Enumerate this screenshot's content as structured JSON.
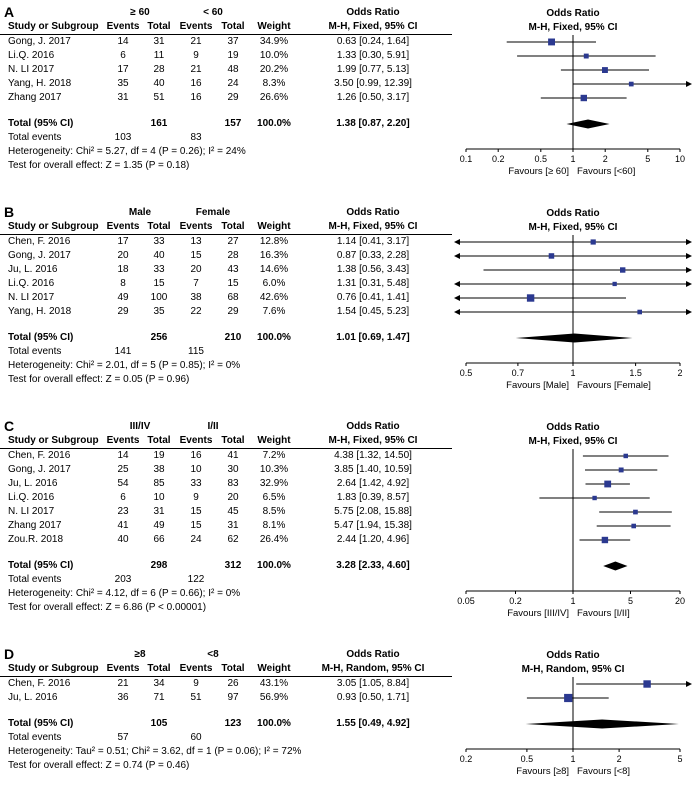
{
  "figure": {
    "columns": {
      "study": "Study or Subgroup",
      "events": "Events",
      "total": "Total",
      "weight": "Weight",
      "or_title": "Odds Ratio"
    },
    "labels": {
      "total_ci": "Total (95% CI)",
      "total_events": "Total events"
    },
    "colors": {
      "marker": "#2b3990",
      "diamond": "#000000",
      "line": "#000000"
    }
  },
  "chart_data": [
    {
      "type": "forest",
      "label": "A",
      "group1": "≥ 60",
      "group2": "< 60",
      "effect_label": "M-H, Fixed, 95% CI",
      "studies": [
        {
          "study": "Gong, J. 2017",
          "events1": "14",
          "total1": "31",
          "events2": "21",
          "total2": "37",
          "weight": "34.9%",
          "or": 0.63,
          "ci_low": 0.24,
          "ci_high": 1.64,
          "ci_text": "0.63 [0.24, 1.64]"
        },
        {
          "study": "Li.Q. 2016",
          "events1": "6",
          "total1": "11",
          "events2": "9",
          "total2": "19",
          "weight": "10.0%",
          "or": 1.33,
          "ci_low": 0.3,
          "ci_high": 5.91,
          "ci_text": "1.33 [0.30, 5.91]"
        },
        {
          "study": "N. LI 2017",
          "events1": "17",
          "total1": "28",
          "events2": "21",
          "total2": "48",
          "weight": "20.2%",
          "or": 1.99,
          "ci_low": 0.77,
          "ci_high": 5.13,
          "ci_text": "1.99 [0.77, 5.13]"
        },
        {
          "study": "Yang, H. 2018",
          "events1": "35",
          "total1": "40",
          "events2": "16",
          "total2": "24",
          "weight": "8.3%",
          "or": 3.5,
          "ci_low": 0.99,
          "ci_high": 12.39,
          "ci_text": "3.50 [0.99, 12.39]"
        },
        {
          "study": "Zhang 2017",
          "events1": "31",
          "total1": "51",
          "events2": "16",
          "total2": "29",
          "weight": "26.6%",
          "or": 1.26,
          "ci_low": 0.5,
          "ci_high": 3.17,
          "ci_text": "1.26 [0.50, 3.17]"
        }
      ],
      "total": {
        "total1": "161",
        "total2": "157",
        "weight": "100.0%",
        "or": 1.38,
        "ci_low": 0.87,
        "ci_high": 2.2,
        "ci_text": "1.38 [0.87, 2.20]"
      },
      "total_events": {
        "events1": "103",
        "events2": "83"
      },
      "heterogeneity": "Heterogeneity: Chi² = 5.27, df = 4 (P = 0.26); I² = 24%",
      "overall_test": "Test for overall effect: Z = 1.35 (P = 0.18)",
      "axis": {
        "min": 0.1,
        "max": 10,
        "ticks": [
          0.1,
          0.2,
          0.5,
          1,
          2,
          5,
          10
        ]
      },
      "favours_left": "Favours [≥ 60]",
      "favours_right": "Favours [<60]"
    },
    {
      "type": "forest",
      "label": "B",
      "group1": "Male",
      "group2": "Female",
      "effect_label": "M-H, Fixed, 95% CI",
      "studies": [
        {
          "study": "Chen, F. 2016",
          "events1": "17",
          "total1": "33",
          "events2": "13",
          "total2": "27",
          "weight": "12.8%",
          "or": 1.14,
          "ci_low": 0.41,
          "ci_high": 3.17,
          "ci_text": "1.14 [0.41, 3.17]"
        },
        {
          "study": "Gong, J. 2017",
          "events1": "20",
          "total1": "40",
          "events2": "15",
          "total2": "28",
          "weight": "16.3%",
          "or": 0.87,
          "ci_low": 0.33,
          "ci_high": 2.28,
          "ci_text": "0.87 [0.33, 2.28]"
        },
        {
          "study": "Ju, L. 2016",
          "events1": "18",
          "total1": "33",
          "events2": "20",
          "total2": "43",
          "weight": "14.6%",
          "or": 1.38,
          "ci_low": 0.56,
          "ci_high": 3.43,
          "ci_text": "1.38 [0.56, 3.43]"
        },
        {
          "study": "Li.Q. 2016",
          "events1": "8",
          "total1": "15",
          "events2": "7",
          "total2": "15",
          "weight": "6.0%",
          "or": 1.31,
          "ci_low": 0.31,
          "ci_high": 5.48,
          "ci_text": "1.31 [0.31, 5.48]"
        },
        {
          "study": "N. LI 2017",
          "events1": "49",
          "total1": "100",
          "events2": "38",
          "total2": "68",
          "weight": "42.6%",
          "or": 0.76,
          "ci_low": 0.41,
          "ci_high": 1.41,
          "ci_text": "0.76 [0.41, 1.41]"
        },
        {
          "study": "Yang, H. 2018",
          "events1": "29",
          "total1": "35",
          "events2": "22",
          "total2": "29",
          "weight": "7.6%",
          "or": 1.54,
          "ci_low": 0.45,
          "ci_high": 5.23,
          "ci_text": "1.54 [0.45, 5.23]"
        }
      ],
      "total": {
        "total1": "256",
        "total2": "210",
        "weight": "100.0%",
        "or": 1.01,
        "ci_low": 0.69,
        "ci_high": 1.47,
        "ci_text": "1.01 [0.69, 1.47]"
      },
      "total_events": {
        "events1": "141",
        "events2": "115"
      },
      "heterogeneity": "Heterogeneity: Chi² = 2.01, df = 5 (P = 0.85); I² = 0%",
      "overall_test": "Test for overall effect: Z = 0.05 (P = 0.96)",
      "axis": {
        "min": 0.5,
        "max": 2,
        "ticks": [
          0.5,
          0.7,
          1,
          1.5,
          2
        ]
      },
      "favours_left": "Favours [Male]",
      "favours_right": "Favours [Female]"
    },
    {
      "type": "forest",
      "label": "C",
      "group1": "III/IV",
      "group2": "I/II",
      "effect_label": "M-H, Fixed, 95% CI",
      "studies": [
        {
          "study": "Chen, F. 2016",
          "events1": "14",
          "total1": "19",
          "events2": "16",
          "total2": "41",
          "weight": "7.2%",
          "or": 4.38,
          "ci_low": 1.32,
          "ci_high": 14.5,
          "ci_text": "4.38 [1.32, 14.50]"
        },
        {
          "study": "Gong, J. 2017",
          "events1": "25",
          "total1": "38",
          "events2": "10",
          "total2": "30",
          "weight": "10.3%",
          "or": 3.85,
          "ci_low": 1.4,
          "ci_high": 10.59,
          "ci_text": "3.85 [1.40, 10.59]"
        },
        {
          "study": "Ju, L. 2016",
          "events1": "54",
          "total1": "85",
          "events2": "33",
          "total2": "83",
          "weight": "32.9%",
          "or": 2.64,
          "ci_low": 1.42,
          "ci_high": 4.92,
          "ci_text": "2.64 [1.42, 4.92]"
        },
        {
          "study": "Li.Q. 2016",
          "events1": "6",
          "total1": "10",
          "events2": "9",
          "total2": "20",
          "weight": "6.5%",
          "or": 1.83,
          "ci_low": 0.39,
          "ci_high": 8.57,
          "ci_text": "1.83 [0.39, 8.57]"
        },
        {
          "study": "N. LI 2017",
          "events1": "23",
          "total1": "31",
          "events2": "15",
          "total2": "45",
          "weight": "8.5%",
          "or": 5.75,
          "ci_low": 2.08,
          "ci_high": 15.88,
          "ci_text": "5.75 [2.08, 15.88]"
        },
        {
          "study": "Zhang 2017",
          "events1": "41",
          "total1": "49",
          "events2": "15",
          "total2": "31",
          "weight": "8.1%",
          "or": 5.47,
          "ci_low": 1.94,
          "ci_high": 15.38,
          "ci_text": "5.47 [1.94, 15.38]"
        },
        {
          "study": "Zou.R. 2018",
          "events1": "40",
          "total1": "66",
          "events2": "24",
          "total2": "62",
          "weight": "26.4%",
          "or": 2.44,
          "ci_low": 1.2,
          "ci_high": 4.96,
          "ci_text": "2.44 [1.20, 4.96]"
        }
      ],
      "total": {
        "total1": "298",
        "total2": "312",
        "weight": "100.0%",
        "or": 3.28,
        "ci_low": 2.33,
        "ci_high": 4.6,
        "ci_text": "3.28 [2.33, 4.60]"
      },
      "total_events": {
        "events1": "203",
        "events2": "122"
      },
      "heterogeneity": "Heterogeneity: Chi² = 4.12, df = 6 (P = 0.66); I² = 0%",
      "overall_test": "Test for overall effect: Z = 6.86 (P < 0.00001)",
      "axis": {
        "min": 0.05,
        "max": 20,
        "ticks": [
          0.05,
          0.2,
          1,
          5,
          20
        ]
      },
      "favours_left": "Favours [III/IV]",
      "favours_right": "Favours [I/II]"
    },
    {
      "type": "forest",
      "label": "D",
      "group1": "≥8",
      "group2": "<8",
      "effect_label": "M-H, Random, 95% CI",
      "studies": [
        {
          "study": "Chen, F. 2016",
          "events1": "21",
          "total1": "34",
          "events2": "9",
          "total2": "26",
          "weight": "43.1%",
          "or": 3.05,
          "ci_low": 1.05,
          "ci_high": 8.84,
          "ci_text": "3.05 [1.05, 8.84]"
        },
        {
          "study": "Ju, L. 2016",
          "events1": "36",
          "total1": "71",
          "events2": "51",
          "total2": "97",
          "weight": "56.9%",
          "or": 0.93,
          "ci_low": 0.5,
          "ci_high": 1.71,
          "ci_text": "0.93 [0.50, 1.71]"
        }
      ],
      "total": {
        "total1": "105",
        "total2": "123",
        "weight": "100.0%",
        "or": 1.55,
        "ci_low": 0.49,
        "ci_high": 4.92,
        "ci_text": "1.55 [0.49, 4.92]"
      },
      "total_events": {
        "events1": "57",
        "events2": "60"
      },
      "heterogeneity": "Heterogeneity: Tau² = 0.51; Chi² = 3.62, df = 1 (P = 0.06); I² = 72%",
      "overall_test": "Test for overall effect: Z = 0.74 (P = 0.46)",
      "axis": {
        "min": 0.2,
        "max": 5,
        "ticks": [
          0.2,
          0.5,
          1,
          2,
          5
        ]
      },
      "favours_left": "Favours [≥8]",
      "favours_right": "Favours [<8]"
    }
  ]
}
